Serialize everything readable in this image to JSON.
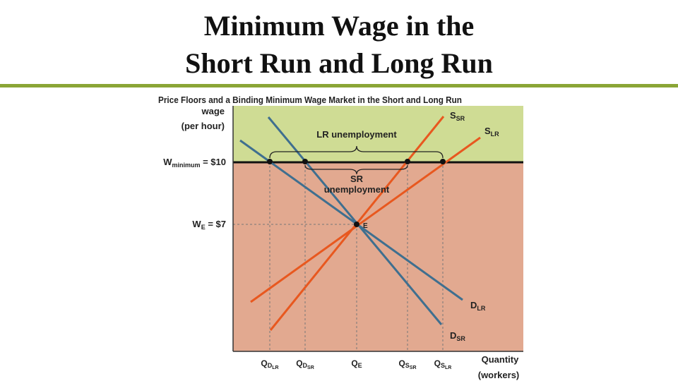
{
  "header": {
    "title_lines": [
      "Minimum Wage in the",
      "Short Run and Long Run"
    ]
  },
  "figure": {
    "caption": "Price Floors and a Binding Minimum Wage Market in the Short and Long Run",
    "y_axis_label": [
      "wage",
      "(per hour)"
    ],
    "x_axis_label": [
      "Quantity",
      "(workers)"
    ],
    "wage_labels": [
      {
        "main": "W",
        "sub": "minimum",
        "rest": " = $10"
      },
      {
        "main": "W",
        "sub": "E",
        "rest": " = $7"
      }
    ],
    "curve_labels": [
      {
        "main": "S",
        "sub": "SR"
      },
      {
        "main": "S",
        "sub": "LR"
      },
      {
        "main": "D",
        "sub": "LR"
      },
      {
        "main": "D",
        "sub": "SR"
      }
    ],
    "equilibrium": "E",
    "brace_labels": {
      "lr": "LR unemployment",
      "sr": [
        "SR",
        "unemployment"
      ]
    },
    "quantity_labels": [
      {
        "main": "Q",
        "sub": "D",
        "subsub": "LR"
      },
      {
        "main": "Q",
        "sub": "D",
        "subsub": "SR"
      },
      {
        "main": "Q",
        "sub": "E"
      },
      {
        "main": "Q",
        "sub": "S",
        "subsub": "SR"
      },
      {
        "main": "Q",
        "sub": "S",
        "subsub": "LR"
      }
    ]
  }
}
